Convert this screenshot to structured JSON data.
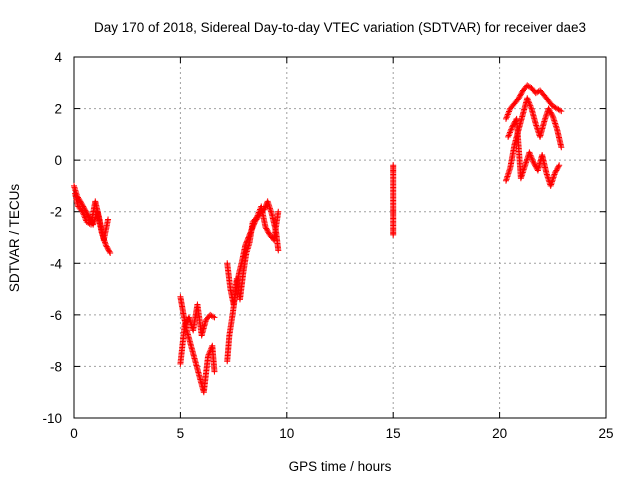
{
  "chart_data": {
    "type": "scatter",
    "title": "Day 170 of 2018, Sidereal Day-to-day VTEC variation (SDTVAR) for receiver dae3",
    "xlabel": "GPS time / hours",
    "ylabel": "SDTVAR / TECUs",
    "xlim": [
      0,
      25
    ],
    "ylim": [
      -10,
      4
    ],
    "xticks": [
      0,
      5,
      10,
      15,
      20,
      25
    ],
    "yticks": [
      -10,
      -8,
      -6,
      -4,
      -2,
      0,
      2,
      4
    ],
    "grid": true,
    "marker": "+",
    "color": "#ff0000",
    "segments": [
      {
        "x": [
          0.0,
          0.15,
          0.3,
          0.5,
          0.7,
          0.9,
          1.1,
          1.3,
          1.5,
          1.7
        ],
        "y": [
          -1.0,
          -1.4,
          -1.6,
          -1.9,
          -2.2,
          -2.5,
          -2.0,
          -2.8,
          -3.3,
          -3.6
        ]
      },
      {
        "x": [
          0.05,
          0.2,
          0.4,
          0.6,
          0.8,
          1.0,
          1.2,
          1.4,
          1.6
        ],
        "y": [
          -1.3,
          -1.8,
          -2.0,
          -2.4,
          -2.5,
          -1.6,
          -2.3,
          -3.1,
          -2.3
        ]
      },
      {
        "x": [
          5.0,
          5.15,
          5.3,
          5.5,
          5.7,
          5.9,
          6.1,
          6.3,
          6.5,
          6.6
        ],
        "y": [
          -5.3,
          -6.0,
          -6.6,
          -7.2,
          -7.8,
          -8.4,
          -9.0,
          -7.6,
          -7.2,
          -8.2
        ]
      },
      {
        "x": [
          5.0,
          5.2,
          5.4,
          5.6,
          5.8,
          6.0,
          6.2,
          6.4,
          6.6
        ],
        "y": [
          -7.9,
          -6.4,
          -6.1,
          -6.6,
          -5.6,
          -6.8,
          -6.2,
          -6.0,
          -6.1
        ]
      },
      {
        "x": [
          7.2,
          7.3,
          7.45,
          7.6,
          7.75,
          7.9,
          8.05,
          8.2,
          8.35,
          8.5,
          8.65,
          8.8,
          8.95,
          9.1,
          9.3,
          9.5,
          9.6
        ],
        "y": [
          -7.8,
          -6.8,
          -6.0,
          -5.1,
          -4.4,
          -3.9,
          -3.3,
          -3.0,
          -2.7,
          -2.4,
          -2.2,
          -2.0,
          -1.9,
          -1.6,
          -2.1,
          -2.8,
          -3.5
        ]
      },
      {
        "x": [
          7.2,
          7.35,
          7.5,
          7.65,
          7.8,
          7.95,
          8.1,
          8.25,
          8.4,
          8.6,
          8.8,
          9.0,
          9.2,
          9.4,
          9.6
        ],
        "y": [
          -4.0,
          -5.0,
          -5.6,
          -4.6,
          -5.4,
          -4.4,
          -3.6,
          -3.2,
          -2.4,
          -2.2,
          -1.8,
          -2.6,
          -2.9,
          -3.1,
          -2.0
        ]
      },
      {
        "x": [
          15.0,
          15.0,
          15.0,
          15.0,
          15.0,
          15.0
        ],
        "y": [
          -0.2,
          -0.5,
          -1.9,
          -2.1,
          -2.7,
          -2.9
        ]
      },
      {
        "x": [
          20.3,
          20.5,
          20.7,
          20.9,
          21.1,
          21.3,
          21.5,
          21.7,
          21.9,
          22.1,
          22.3,
          22.5,
          22.7,
          22.9
        ],
        "y": [
          1.6,
          2.0,
          2.2,
          2.4,
          2.7,
          2.9,
          2.8,
          2.6,
          2.7,
          2.5,
          2.3,
          2.1,
          2.0,
          1.9
        ]
      },
      {
        "x": [
          20.3,
          20.5,
          20.7,
          20.9,
          21.1,
          21.3,
          21.5,
          21.7,
          21.9,
          22.1,
          22.3,
          22.5,
          22.7,
          22.9
        ],
        "y": [
          -0.8,
          -0.3,
          0.6,
          1.2,
          1.8,
          2.4,
          2.0,
          1.4,
          0.9,
          1.5,
          2.0,
          1.7,
          1.2,
          0.5
        ]
      },
      {
        "x": [
          20.4,
          20.6,
          20.8,
          21.0,
          21.2,
          21.4,
          21.6,
          21.8,
          22.0,
          22.2,
          22.4,
          22.6,
          22.8
        ],
        "y": [
          0.9,
          1.3,
          1.6,
          -0.7,
          -0.2,
          0.3,
          -0.1,
          -0.4,
          0.2,
          -0.5,
          -1.0,
          -0.5,
          -0.2
        ]
      }
    ]
  }
}
